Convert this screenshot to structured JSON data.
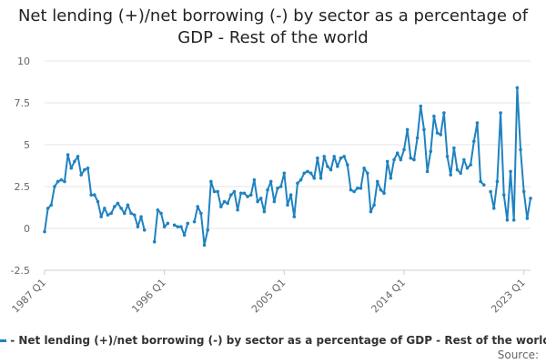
{
  "colors": {
    "series": "#1f82c0",
    "grid": "#e6e6e6",
    "text": "#666666"
  },
  "chart_data": {
    "type": "line",
    "title": "Net lending (+)/net borrowing (-) by sector as a percentage of GDP - Rest of the world",
    "xlabel": "",
    "ylabel": "",
    "ylim": [
      -2.5,
      10
    ],
    "yticks": [
      -2.5,
      0,
      2.5,
      5,
      7.5,
      10
    ],
    "ytick_labels": [
      "-2.5",
      "0",
      "2.5",
      "5",
      "7.5",
      "10"
    ],
    "xtick_labels": [
      "1987 Q1",
      "1996 Q1",
      "2005 Q1",
      "2014 Q1",
      "2023 Q1"
    ],
    "x_start": "1987 Q1",
    "x_end": "2023 Q2",
    "grid": "horizontal",
    "legend_position": "bottom",
    "series": [
      {
        "name": "Net lending (+)/net borrowing (-) by sector as a percentage of GDP - Rest of the world",
        "values": [
          -0.2,
          1.2,
          1.4,
          2.5,
          2.8,
          2.9,
          2.8,
          4.4,
          3.6,
          4.0,
          4.3,
          3.2,
          3.5,
          3.6,
          2.0,
          2.0,
          1.6,
          0.7,
          1.2,
          0.8,
          0.9,
          1.3,
          1.5,
          1.2,
          0.9,
          1.4,
          0.9,
          0.8,
          0.1,
          0.7,
          -0.1,
          null,
          null,
          -0.8,
          1.1,
          0.9,
          0.1,
          0.3,
          null,
          0.2,
          0.1,
          0.1,
          -0.4,
          0.3,
          null,
          0.4,
          1.3,
          0.9,
          -1.0,
          -0.1,
          2.8,
          2.2,
          2.2,
          1.3,
          1.6,
          1.5,
          2.0,
          2.2,
          1.1,
          2.1,
          2.1,
          1.9,
          2.0,
          2.9,
          1.6,
          1.8,
          1.0,
          2.3,
          2.8,
          1.6,
          2.4,
          2.5,
          3.3,
          1.4,
          2.0,
          0.7,
          2.7,
          2.9,
          3.3,
          3.4,
          3.3,
          3.0,
          4.2,
          3.0,
          4.3,
          3.7,
          3.5,
          4.3,
          3.7,
          4.2,
          4.3,
          3.8,
          2.3,
          2.2,
          2.4,
          2.4,
          3.6,
          3.3,
          1.0,
          1.4,
          2.8,
          2.3,
          2.1,
          4.0,
          3.0,
          4.1,
          4.5,
          4.1,
          4.7,
          5.9,
          4.2,
          4.1,
          5.4,
          7.3,
          5.9,
          3.4,
          4.6,
          6.7,
          5.7,
          5.6,
          6.9,
          4.3,
          3.2,
          4.8,
          3.5,
          3.3,
          4.1,
          3.6,
          3.8,
          5.2,
          6.3,
          2.8,
          2.6,
          null,
          2.2,
          1.2,
          2.8,
          6.9,
          2.0,
          0.5,
          3.4,
          0.5,
          8.4,
          4.7,
          2.2,
          0.6,
          1.8
        ]
      }
    ]
  },
  "legend": {
    "label": "- Net lending (+)/net borrowing (-) by sector as a percentage of GDP - Rest of the world"
  },
  "source": {
    "label": "Source:"
  }
}
